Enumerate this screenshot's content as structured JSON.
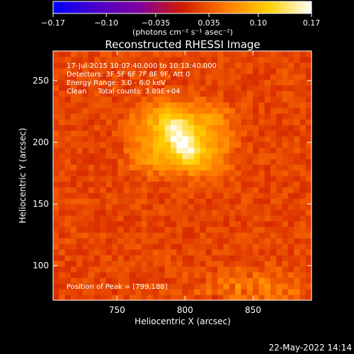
{
  "chart_data": {
    "type": "heatmap",
    "title": "Reconstructed RHESSI Image",
    "xlabel": "Heliocentric X (arcsec)",
    "ylabel": "Heliocentric Y (arcsec)",
    "xlim": [
      703,
      893
    ],
    "ylim": [
      72,
      274
    ],
    "xticks": [
      750,
      800,
      850
    ],
    "yticks": [
      100,
      150,
      200,
      250
    ],
    "colorbar": {
      "range": [
        -0.17,
        0.17
      ],
      "tick_values": [
        -0.17,
        -0.1,
        -0.035,
        0.035,
        0.1,
        0.17
      ],
      "tick_labels": [
        "−0.17",
        "−0.10",
        "−0.035",
        "0.035",
        "0.10",
        "0.17"
      ],
      "unit": "(photons cm⁻² s⁻¹ asec⁻²)",
      "colors": [
        "#0000ff",
        "#4b00c8",
        "#8000a0",
        "#d11a00",
        "#ff7a00",
        "#ffd000",
        "#ffffff"
      ]
    },
    "annotations": [
      "17-Jul-2015 10:07:40.000 to 10:13:40.000",
      "Detectors: 3F 5F 6F 7F 8F 9F, Att 0",
      "Energy Range: 3.0 - 6.0 keV",
      "Clean     Total counts: 3.89E+04"
    ],
    "peak_label": "Position of Peak = [799,188]",
    "peak": [
      799,
      188
    ],
    "source": {
      "center": [
        797,
        203
      ],
      "size_x": 38,
      "size_y": 30,
      "peak_value": 0.17
    },
    "background_value": 0.025
  },
  "footer": {
    "date": "22-May-2022 14:14"
  }
}
